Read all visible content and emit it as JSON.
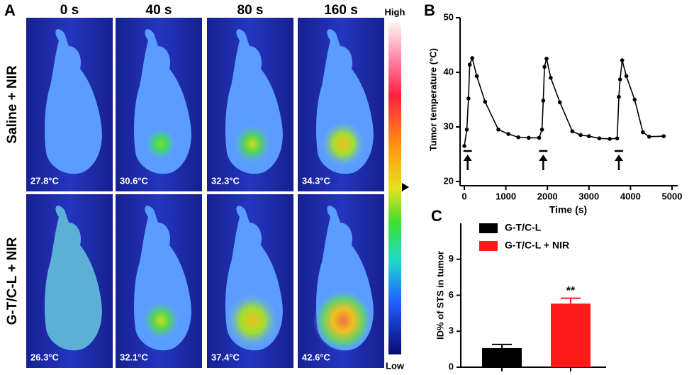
{
  "panel_a": {
    "label": "A",
    "columns": [
      "0 s",
      "40 s",
      "80 s",
      "160 s"
    ],
    "rows": [
      "Saline + NIR",
      "G-T/C-L + NIR"
    ],
    "temperatures": [
      [
        "27.8°C",
        "30.6°C",
        "32.3°C",
        "34.3°C"
      ],
      [
        "26.3°C",
        "32.1°C",
        "37.4°C",
        "42.6°C"
      ]
    ],
    "colorbar": {
      "high": "High",
      "low": "Low"
    }
  },
  "chart_data": [
    {
      "type": "line",
      "label": "B",
      "x_label": "Time (s)",
      "y_label": "Tumor temperature (°C)",
      "x": [
        0,
        60,
        100,
        130,
        190,
        300,
        500,
        820,
        1060,
        1300,
        1550,
        1800,
        1870,
        1900,
        1930,
        1980,
        2080,
        2300,
        2600,
        2800,
        3000,
        3250,
        3500,
        3680,
        3720,
        3750,
        3800,
        3900,
        4100,
        4300,
        4450,
        4800
      ],
      "values": [
        26.5,
        29.5,
        35.2,
        41.4,
        42.6,
        39.3,
        34.6,
        29.5,
        28.7,
        28.1,
        28,
        28,
        29.5,
        34.8,
        41,
        42.5,
        39,
        34.5,
        29.2,
        28.5,
        28.3,
        27.9,
        27.8,
        27.9,
        35.5,
        38.7,
        42.2,
        39.3,
        35,
        29,
        28.2,
        28.3
      ],
      "color": "#000000",
      "markers_x": [
        80,
        1900,
        3720
      ],
      "xlim": [
        0,
        5000
      ],
      "xticks": [
        0,
        1000,
        2000,
        3000,
        4000,
        5000
      ],
      "ylim": [
        20,
        50
      ],
      "yticks": [
        20,
        30,
        40,
        50
      ]
    },
    {
      "type": "bar",
      "label": "C",
      "y_label": "ID% of STS in tumor",
      "categories": [
        null,
        null
      ],
      "series": [
        {
          "name": "G-T/C-L",
          "color": "#000000",
          "values": [
            1.6,
            null
          ],
          "errors": [
            0.3,
            null
          ]
        },
        {
          "name": "G-T/C-L + NIR",
          "color": "#ff1a1a",
          "values": [
            null,
            5.3
          ],
          "errors": [
            null,
            0.45
          ],
          "significance": [
            null,
            "**"
          ]
        }
      ],
      "ylim": [
        0,
        12
      ],
      "yticks": [
        0,
        3,
        6,
        9
      ]
    }
  ]
}
